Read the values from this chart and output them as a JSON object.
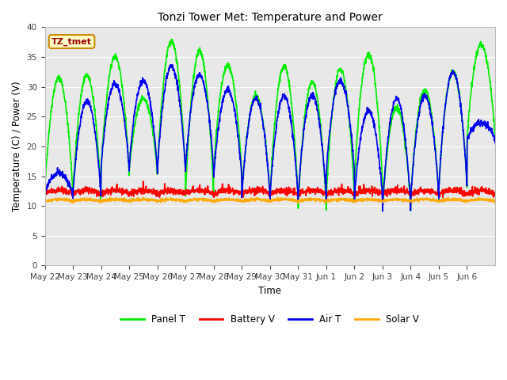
{
  "title": "Tonzi Tower Met: Temperature and Power",
  "ylabel": "Temperature (C) / Power (V)",
  "xlabel": "Time",
  "ylim": [
    0,
    40
  ],
  "yticks": [
    0,
    5,
    10,
    15,
    20,
    25,
    30,
    35,
    40
  ],
  "fig_bg_color": "#ffffff",
  "plot_bg_color": "#e8e8e8",
  "annotation_text": "TZ_tmet",
  "annotation_bg": "#ffffcc",
  "annotation_border": "#cc8800",
  "annotation_text_color": "#990000",
  "legend_labels": [
    "Panel T",
    "Battery V",
    "Air T",
    "Solar V"
  ],
  "legend_colors": [
    "#00ee00",
    "#ff0000",
    "#0000ee",
    "#ffaa00"
  ],
  "x_tick_labels": [
    "May 22",
    "May 23",
    "May 24",
    "May 25",
    "May 26",
    "May 27",
    "May 28",
    "May 29",
    "May 30",
    "May 31",
    "Jun 1",
    "Jun 2",
    "Jun 3",
    "Jun 4",
    "Jun 5",
    "Jun 6"
  ],
  "n_days": 16,
  "panel_t_peaks": [
    31.5,
    32.0,
    35.0,
    28.0,
    37.5,
    36.0,
    33.5,
    28.5,
    33.5,
    30.8,
    33.0,
    35.5,
    26.5,
    29.5,
    32.5,
    37.0
  ],
  "panel_t_troughs": [
    12.0,
    11.5,
    15.5,
    15.5,
    15.5,
    11.5,
    15.5,
    11.5,
    11.0,
    9.5,
    11.0,
    13.5,
    9.5,
    11.0,
    13.0,
    21.0
  ],
  "air_t_peaks": [
    15.5,
    27.5,
    30.5,
    31.0,
    33.5,
    32.0,
    29.5,
    28.0,
    28.5,
    28.5,
    31.0,
    26.0,
    28.0,
    28.5,
    32.5,
    24.0
  ],
  "air_t_troughs": [
    12.0,
    11.5,
    16.0,
    16.0,
    15.5,
    16.0,
    14.5,
    11.5,
    11.0,
    11.0,
    15.5,
    11.0,
    9.5,
    11.0,
    13.0,
    21.0
  ],
  "battery_v_base": 12.0,
  "solar_v_base": 10.8,
  "line_width": 1.2
}
